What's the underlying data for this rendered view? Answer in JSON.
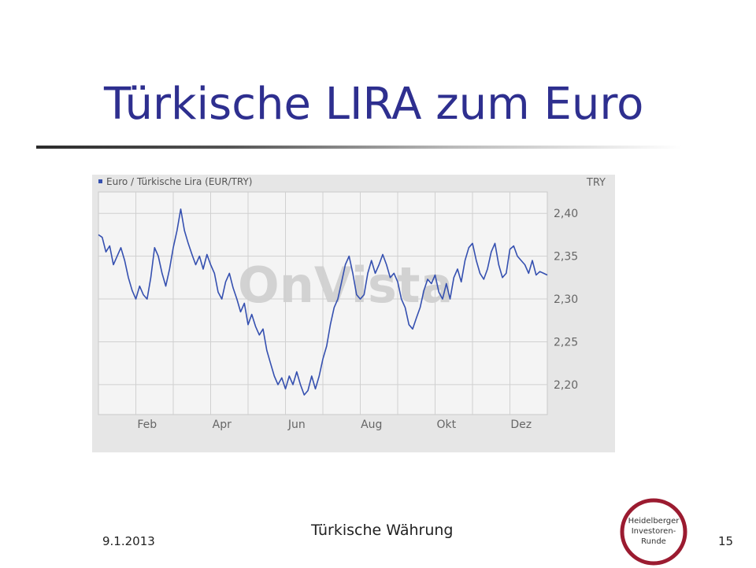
{
  "slide": {
    "title": "Türkische LIRA zum Euro",
    "footer_date": "9.1.2013",
    "footer_center": "Türkische Währung",
    "page_number": "15"
  },
  "logo": {
    "lines": [
      "Heidelberger",
      "Investoren-",
      "Runde"
    ],
    "color": "#9b1b30"
  },
  "watermark": "OnVista",
  "chart_data": {
    "type": "line",
    "series_name": "Euro / Türkische Lira (EUR/TRY)",
    "unit_label": "TRY",
    "x_tick_labels": [
      "Feb",
      "Apr",
      "Jun",
      "Aug",
      "Okt",
      "Dez"
    ],
    "x_tick_positions": [
      1.3,
      3.3,
      5.3,
      7.3,
      9.3,
      11.3
    ],
    "y_tick_labels": [
      "2,40",
      "2,35",
      "2,30",
      "2,25",
      "2,20"
    ],
    "y_ticks": [
      2.4,
      2.35,
      2.3,
      2.25,
      2.2
    ],
    "ylim": [
      2.165,
      2.425
    ],
    "xlim": [
      0,
      12
    ],
    "grid": true,
    "line_color": "#3550b0",
    "x": [
      0.0,
      0.1,
      0.2,
      0.3,
      0.4,
      0.5,
      0.6,
      0.7,
      0.8,
      0.9,
      1.0,
      1.1,
      1.2,
      1.3,
      1.4,
      1.5,
      1.6,
      1.7,
      1.8,
      1.9,
      2.0,
      2.1,
      2.2,
      2.3,
      2.4,
      2.5,
      2.6,
      2.7,
      2.8,
      2.9,
      3.0,
      3.1,
      3.2,
      3.3,
      3.4,
      3.5,
      3.6,
      3.7,
      3.8,
      3.9,
      4.0,
      4.1,
      4.2,
      4.3,
      4.4,
      4.5,
      4.6,
      4.7,
      4.8,
      4.9,
      5.0,
      5.1,
      5.2,
      5.3,
      5.4,
      5.5,
      5.6,
      5.7,
      5.8,
      5.9,
      6.0,
      6.1,
      6.2,
      6.3,
      6.4,
      6.5,
      6.6,
      6.7,
      6.8,
      6.9,
      7.0,
      7.1,
      7.2,
      7.3,
      7.4,
      7.5,
      7.6,
      7.7,
      7.8,
      7.9,
      8.0,
      8.1,
      8.2,
      8.3,
      8.4,
      8.5,
      8.6,
      8.7,
      8.8,
      8.9,
      9.0,
      9.1,
      9.2,
      9.3,
      9.4,
      9.5,
      9.6,
      9.7,
      9.8,
      9.9,
      10.0,
      10.1,
      10.2,
      10.3,
      10.4,
      10.5,
      10.6,
      10.7,
      10.8,
      10.9,
      11.0,
      11.1,
      11.2,
      11.3,
      11.4,
      11.5,
      11.6,
      11.7,
      11.8,
      11.9,
      12.0
    ],
    "values": [
      2.375,
      2.372,
      2.355,
      2.362,
      2.34,
      2.35,
      2.36,
      2.345,
      2.325,
      2.31,
      2.3,
      2.315,
      2.305,
      2.3,
      2.325,
      2.36,
      2.35,
      2.33,
      2.315,
      2.335,
      2.36,
      2.38,
      2.405,
      2.38,
      2.365,
      2.352,
      2.34,
      2.35,
      2.335,
      2.352,
      2.34,
      2.33,
      2.308,
      2.3,
      2.32,
      2.33,
      2.313,
      2.3,
      2.285,
      2.295,
      2.27,
      2.282,
      2.268,
      2.258,
      2.265,
      2.24,
      2.225,
      2.21,
      2.2,
      2.208,
      2.195,
      2.21,
      2.2,
      2.215,
      2.2,
      2.188,
      2.193,
      2.21,
      2.195,
      2.21,
      2.23,
      2.245,
      2.27,
      2.29,
      2.3,
      2.32,
      2.34,
      2.35,
      2.33,
      2.305,
      2.3,
      2.305,
      2.33,
      2.345,
      2.33,
      2.34,
      2.352,
      2.34,
      2.325,
      2.33,
      2.32,
      2.3,
      2.29,
      2.27,
      2.265,
      2.278,
      2.29,
      2.31,
      2.323,
      2.318,
      2.328,
      2.308,
      2.3,
      2.318,
      2.3,
      2.325,
      2.335,
      2.32,
      2.345,
      2.36,
      2.365,
      2.345,
      2.33,
      2.323,
      2.335,
      2.355,
      2.365,
      2.34,
      2.325,
      2.33,
      2.358,
      2.362,
      2.35,
      2.345,
      2.34,
      2.33,
      2.345,
      2.328,
      2.332,
      2.33,
      2.328
    ]
  }
}
